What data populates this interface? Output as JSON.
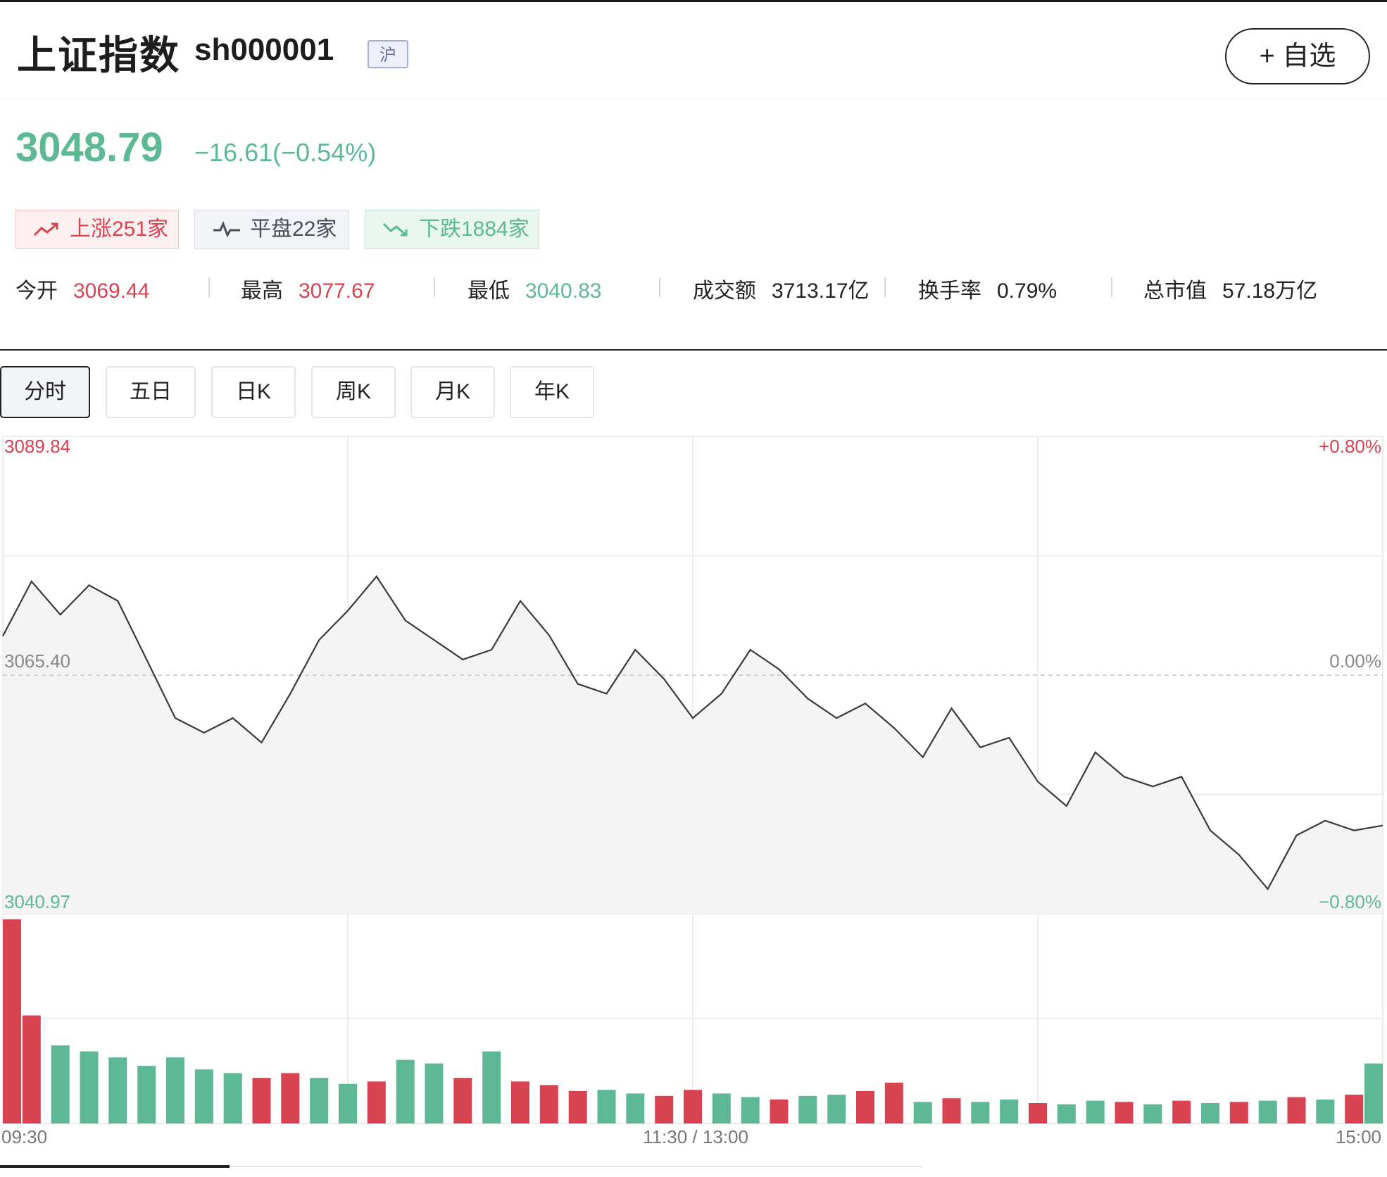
{
  "header": {
    "title": "上证指数",
    "code": "sh000001",
    "market_badge": "沪",
    "favorite_label": "+ 自选"
  },
  "quote": {
    "price": "3048.79",
    "change": "−16.61(−0.54%)"
  },
  "breadth": {
    "up_label": "上涨251家",
    "flat_label": "平盘22家",
    "down_label": "下跌1884家"
  },
  "stats": [
    {
      "label": "今开",
      "value": "3069.44"
    },
    {
      "label": "最高",
      "value": "3077.67"
    },
    {
      "label": "最低",
      "value": "3040.83"
    },
    {
      "label": "成交额",
      "value": "3713.17亿"
    },
    {
      "label": "换手率",
      "value": "0.79%"
    },
    {
      "label": "总市值",
      "value": "57.18万亿"
    }
  ],
  "tabs": [
    {
      "label": "分时",
      "active": true
    },
    {
      "label": "五日",
      "active": false
    },
    {
      "label": "日K",
      "active": false
    },
    {
      "label": "周K",
      "active": false
    },
    {
      "label": "月K",
      "active": false
    },
    {
      "label": "年K",
      "active": false
    }
  ],
  "colors": {
    "up": "#d84351",
    "down": "#5cb895",
    "line": "#3a3a3a"
  },
  "chart_data": {
    "type": "line",
    "price_axis_labels": {
      "high": "3089.84",
      "mid": "3065.40",
      "low": "3040.97"
    },
    "pct_axis_labels": {
      "high": "+0.80%",
      "mid": "0.00%",
      "low": "−0.80%"
    },
    "time_labels": [
      "09:30",
      "11:30 / 13:00",
      "15:00"
    ],
    "ylim": [
      3040.97,
      3089.84
    ],
    "prev_close": 3065.4,
    "x": [
      0,
      5,
      10,
      15,
      20,
      25,
      30,
      35,
      40,
      45,
      50,
      55,
      60,
      65,
      70,
      75,
      80,
      85,
      90,
      95,
      100,
      105,
      110,
      115,
      120,
      125,
      130,
      135,
      140,
      145,
      150,
      155,
      160,
      165,
      170,
      175,
      180,
      185,
      190,
      195,
      200,
      205,
      210,
      215,
      220,
      225,
      230,
      235,
      240
    ],
    "price": [
      3069.4,
      3075.0,
      3071.6,
      3074.6,
      3073.0,
      3067.0,
      3061.0,
      3059.5,
      3061.0,
      3058.5,
      3063.5,
      3069.0,
      3072.0,
      3075.5,
      3071.0,
      3069.0,
      3067.0,
      3068.0,
      3073.0,
      3069.5,
      3064.5,
      3063.5,
      3068.0,
      3065.0,
      3061.0,
      3063.5,
      3068.0,
      3066.0,
      3063.0,
      3061.0,
      3062.5,
      3060.0,
      3057.0,
      3062.0,
      3058.0,
      3059.0,
      3054.5,
      3052.0,
      3057.5,
      3055.0,
      3054.0,
      3055.0,
      3049.5,
      3047.0,
      3043.5,
      3049.0,
      3050.5,
      3049.5,
      3050.0
    ],
    "volume": [
      17,
      9,
      6.5,
      6,
      5.5,
      4.8,
      5.5,
      4.5,
      4.2,
      3.8,
      4.2,
      3.8,
      3.3,
      3.5,
      5.3,
      5,
      3.8,
      6,
      3.5,
      3.2,
      2.7,
      2.8,
      2.5,
      2.3,
      2.8,
      2.5,
      2.2,
      2.0,
      2.3,
      2.4,
      2.7,
      3.4,
      1.8,
      2.1,
      1.8,
      2.0,
      1.7,
      1.6,
      1.9,
      1.8,
      1.6,
      1.9,
      1.7,
      1.8,
      1.9,
      2.2,
      2.0,
      2.4,
      5.0
    ],
    "volume_up": [
      true,
      true,
      false,
      false,
      false,
      false,
      false,
      false,
      false,
      true,
      true,
      false,
      false,
      true,
      false,
      false,
      true,
      false,
      true,
      true,
      true,
      false,
      false,
      true,
      true,
      false,
      false,
      true,
      false,
      false,
      true,
      true,
      false,
      true,
      false,
      false,
      true,
      false,
      false,
      true,
      false,
      true,
      false,
      true,
      false,
      true,
      false,
      true,
      false
    ]
  }
}
